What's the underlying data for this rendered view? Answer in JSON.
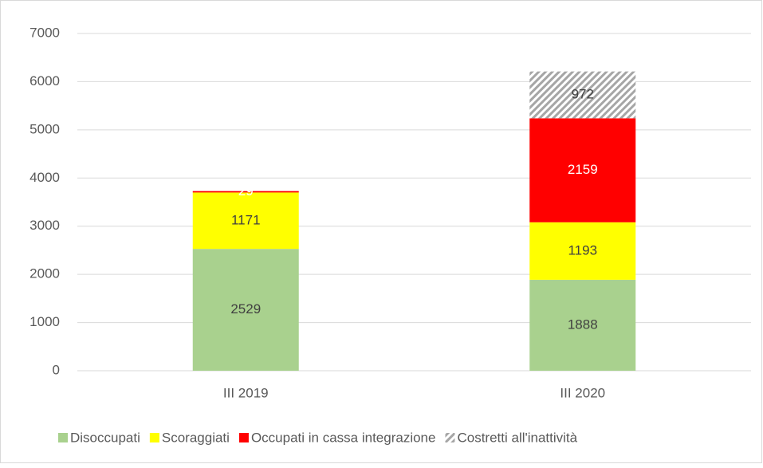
{
  "chart_data": {
    "type": "stacked_bar",
    "categories": [
      "III 2019",
      "III 2020"
    ],
    "series": [
      {
        "name": "Disoccupati",
        "color": "#a9d18e",
        "label_color": "#404040",
        "values": [
          2529,
          1888
        ]
      },
      {
        "name": "Scoraggiati",
        "color": "#ffff00",
        "label_color": "#404040",
        "values": [
          1171,
          1193
        ]
      },
      {
        "name": "Occupati in cassa integrazione",
        "color": "#ff0000",
        "label_color": "#ffffff",
        "values": [
          29,
          2159
        ]
      },
      {
        "name": "Costretti all'inattività",
        "color": "#a6a6a6",
        "hatch": true,
        "label_color": "#404040",
        "values": [
          null,
          972
        ]
      }
    ],
    "ylim": [
      0,
      7000
    ],
    "yticks": [
      0,
      1000,
      2000,
      3000,
      4000,
      5000,
      6000,
      7000
    ],
    "grid": true,
    "legend": "bottom"
  }
}
